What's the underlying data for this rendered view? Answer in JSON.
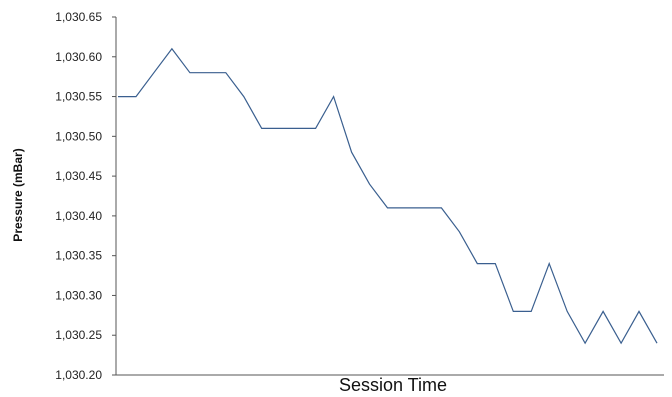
{
  "chart_data": {
    "type": "line",
    "title": "",
    "xlabel": "Session Time",
    "ylabel": "Pressure (mBar)",
    "ylim": [
      1030.2,
      1030.65
    ],
    "yticks": [
      1030.2,
      1030.25,
      1030.3,
      1030.35,
      1030.4,
      1030.45,
      1030.5,
      1030.55,
      1030.6,
      1030.65
    ],
    "ytick_labels": [
      "1,030.20",
      "1,030.25",
      "1,030.30",
      "1,030.35",
      "1,030.40",
      "1,030.45",
      "1,030.50",
      "1,030.55",
      "1,030.60",
      "1,030.65"
    ],
    "grid": false,
    "legend": "none",
    "series": [
      {
        "color": "#3a5f8f",
        "values": [
          1030.55,
          1030.55,
          1030.58,
          1030.61,
          1030.58,
          1030.58,
          1030.58,
          1030.55,
          1030.51,
          1030.51,
          1030.51,
          1030.51,
          1030.55,
          1030.48,
          1030.44,
          1030.41,
          1030.41,
          1030.41,
          1030.41,
          1030.38,
          1030.34,
          1030.34,
          1030.28,
          1030.28,
          1030.34,
          1030.28,
          1030.24,
          1030.28,
          1030.24,
          1030.28,
          1030.24
        ]
      }
    ]
  }
}
